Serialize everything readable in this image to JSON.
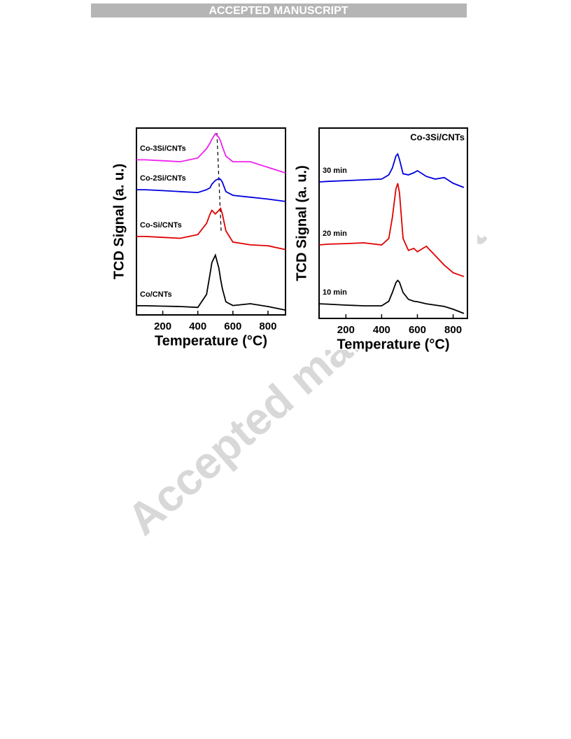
{
  "header": "ACCEPTED MANUSCRIPT",
  "watermark": "Accepted manuscript",
  "chart_data": [
    {
      "type": "line",
      "xlabel": "Temperature (°C)",
      "ylabel": "TCD Signal (a. u.)",
      "x": [
        50,
        100,
        200,
        300,
        400,
        450,
        470,
        480,
        500,
        520,
        530,
        540,
        560,
        600,
        700,
        800,
        900
      ],
      "xlim": [
        50,
        900
      ],
      "xticks": [
        200,
        400,
        600,
        800
      ],
      "ylim": [
        0,
        100
      ],
      "series": [
        {
          "name": "Co/CNTs",
          "color": "#000000",
          "values": [
            4.9,
            4.9,
            4.7,
            4.5,
            4,
            11,
            22,
            28,
            32,
            25,
            19,
            14,
            7,
            5,
            6,
            4.5,
            2.6
          ]
        },
        {
          "name": "Co-Si/CNTs",
          "color": "#e00000",
          "values": [
            42,
            42,
            41.5,
            41,
            43,
            49,
            54,
            56,
            54,
            56,
            57,
            54,
            45,
            39,
            37.5,
            37,
            35
          ]
        },
        {
          "name": "Co-2Si/CNTs",
          "color": "#0000dd",
          "values": [
            67,
            67,
            66.5,
            66,
            65.5,
            67,
            68,
            70,
            72,
            73,
            72.5,
            71,
            66,
            64,
            63,
            62,
            60.7
          ]
        },
        {
          "name": "Co-3Si/CNTs",
          "color": "#ee22ee",
          "values": [
            83,
            83,
            82.5,
            82,
            84,
            89,
            92,
            94,
            97,
            95,
            93,
            90,
            85,
            82,
            82,
            79,
            76
          ]
        }
      ]
    },
    {
      "type": "line",
      "title": "Co-3Si/CNTs",
      "xlabel": "Temperature (°C)",
      "ylabel": "TCD Signal (a. u.)",
      "x": [
        50,
        100,
        200,
        300,
        400,
        440,
        460,
        480,
        490,
        500,
        520,
        550,
        580,
        600,
        650,
        700,
        750,
        800,
        860
      ],
      "xlim": [
        50,
        880
      ],
      "xticks": [
        200,
        400,
        600,
        800
      ],
      "ylim": [
        0,
        100
      ],
      "series": [
        {
          "name": "10 min",
          "color": "#000000",
          "values": [
            7.7,
            7.5,
            7,
            6.6,
            6.6,
            9,
            13.6,
            18.8,
            20,
            19,
            13.6,
            10,
            9,
            8.8,
            7.7,
            7,
            6.3,
            4.8,
            2.6
          ]
        },
        {
          "name": "20 min",
          "color": "#e00000",
          "values": [
            38.6,
            39,
            39.3,
            39.7,
            38.6,
            42,
            53,
            68,
            71,
            66,
            42,
            35.7,
            36.8,
            35,
            37.9,
            33,
            28,
            24,
            22
          ]
        },
        {
          "name": "30 min",
          "color": "#0000dd",
          "values": [
            71.7,
            72,
            72.4,
            72.8,
            73.2,
            75.4,
            79,
            85.3,
            86.4,
            83.5,
            76,
            75.4,
            76.5,
            77.6,
            74.6,
            73.2,
            74,
            71,
            68.8
          ]
        }
      ]
    }
  ]
}
